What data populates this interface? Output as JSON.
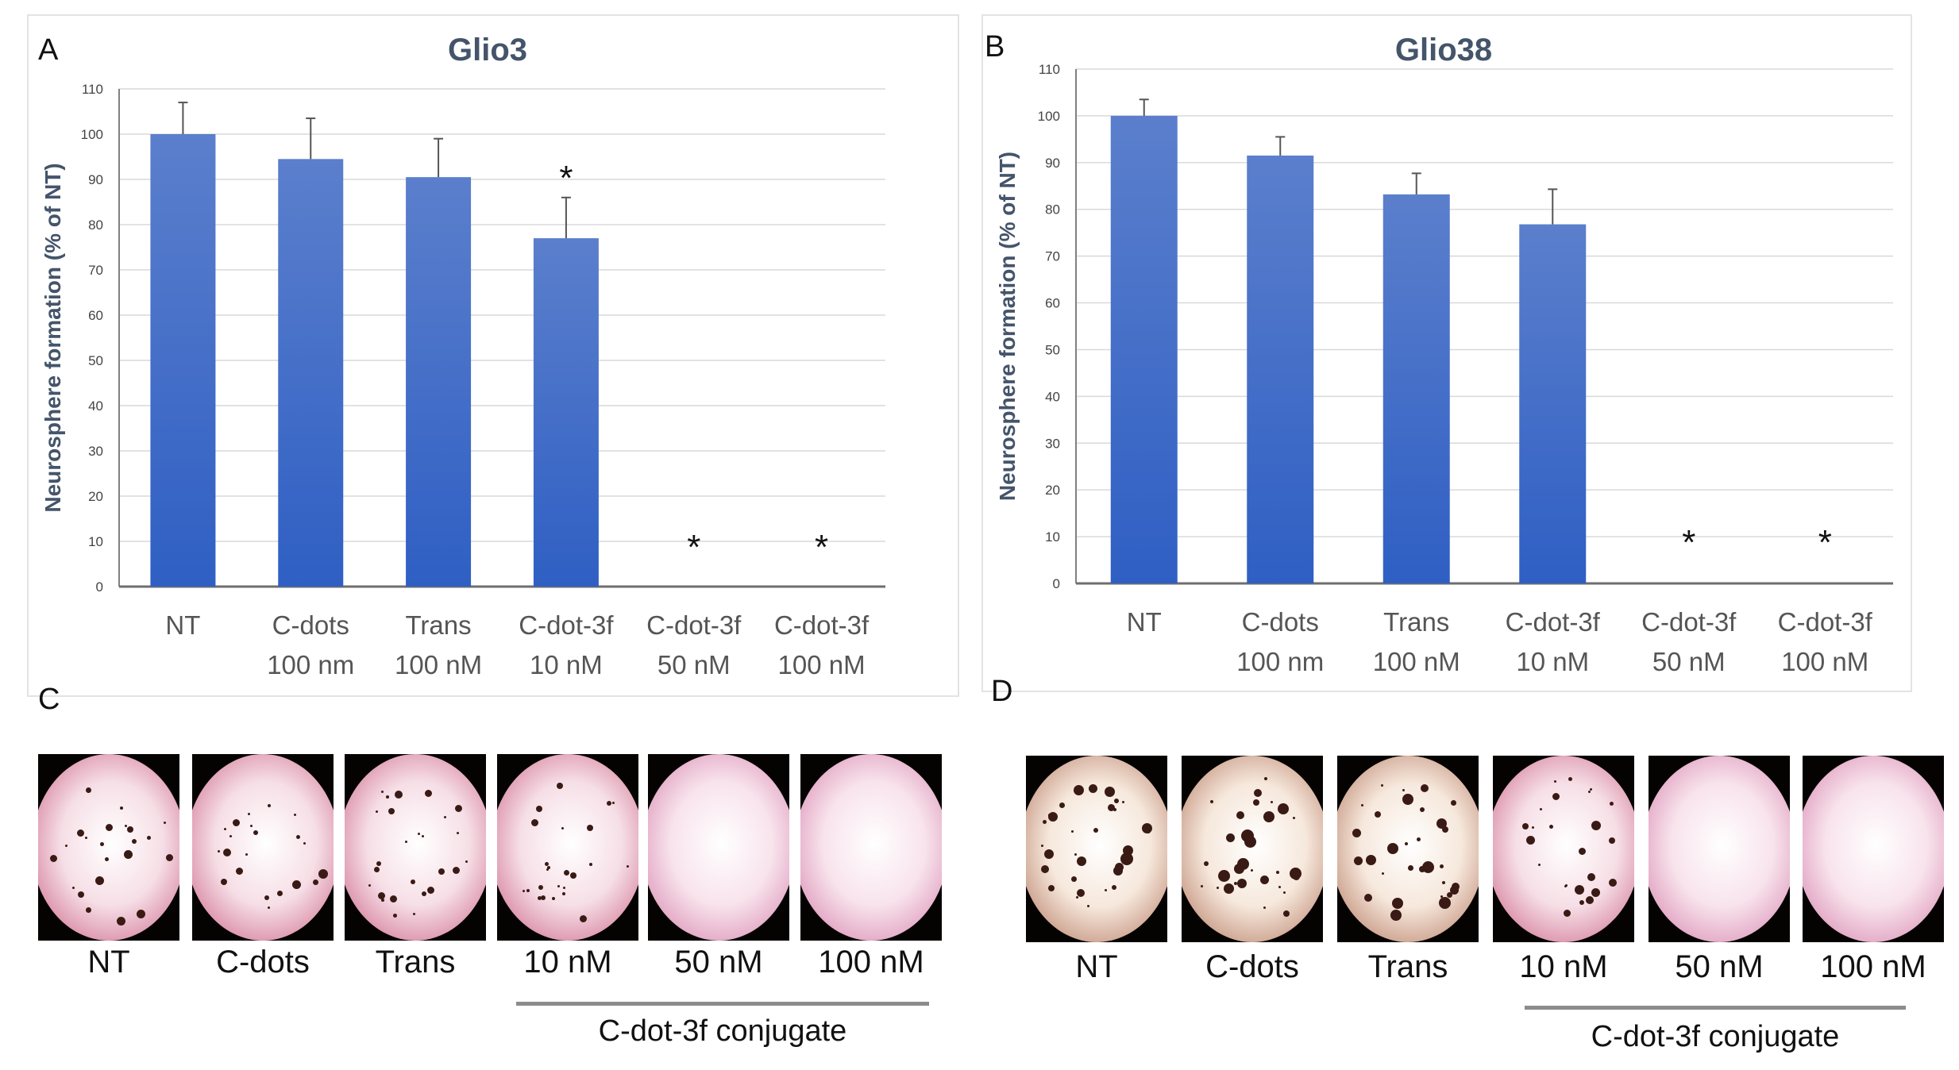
{
  "chart_data": [
    {
      "panel": "A",
      "type": "bar",
      "title": "Glio3",
      "ylabel": "Neurosphere formation (% of NT)",
      "xlabel": "",
      "ylim": [
        0,
        110
      ],
      "yticks": [
        "0",
        "10",
        "20",
        "30",
        "40",
        "50",
        "60",
        "70",
        "80",
        "90",
        "100",
        "110"
      ],
      "categories": [
        {
          "line1": "NT",
          "line2": ""
        },
        {
          "line1": "C-dots",
          "line2": "100 nm"
        },
        {
          "line1": "Trans",
          "line2": "100 nM"
        },
        {
          "line1": "C-dot-3f",
          "line2": "10 nM"
        },
        {
          "line1": "C-dot-3f",
          "line2": "50 nM"
        },
        {
          "line1": "C-dot-3f",
          "line2": "100 nM"
        }
      ],
      "values": [
        100,
        94.5,
        90.5,
        77,
        0,
        0
      ],
      "errors": [
        7,
        9,
        8.5,
        9,
        0,
        0
      ],
      "significance": [
        "",
        "",
        "",
        "*",
        "*",
        "*"
      ],
      "color": "#4472c4",
      "grid": true
    },
    {
      "panel": "B",
      "type": "bar",
      "title": "Glio38",
      "ylabel": "Neurosphere formation (% of NT)",
      "xlabel": "",
      "ylim": [
        0,
        110
      ],
      "yticks": [
        "0",
        "10",
        "20",
        "30",
        "40",
        "50",
        "60",
        "70",
        "80",
        "90",
        "100",
        "110"
      ],
      "categories": [
        {
          "line1": "NT",
          "line2": ""
        },
        {
          "line1": "C-dots",
          "line2": "100 nm"
        },
        {
          "line1": "Trans",
          "line2": "100 nM"
        },
        {
          "line1": "C-dot-3f",
          "line2": "10 nM"
        },
        {
          "line1": "C-dot-3f",
          "line2": "50 nM"
        },
        {
          "line1": "C-dot-3f",
          "line2": "100 nM"
        }
      ],
      "values": [
        100,
        91.5,
        83.2,
        76.8,
        0,
        0
      ],
      "errors": [
        3.5,
        4,
        4.5,
        7.5,
        0,
        0
      ],
      "significance": [
        "",
        "",
        "",
        "",
        "*",
        "*"
      ],
      "color": "#4472c4",
      "grid": true
    }
  ],
  "panel_labels": {
    "a": "A",
    "b": "B",
    "c": "C",
    "d": "D"
  },
  "images_c": {
    "labels": [
      "NT",
      "C-dots",
      "Trans",
      "10 nM",
      "50 nM",
      "100 nM"
    ],
    "group_label": "C-dot-3f conjugate"
  },
  "images_d": {
    "labels": [
      "NT",
      "C-dots",
      "Trans",
      "10 nM",
      "50 nM",
      "100 nM"
    ],
    "group_label": "C-dot-3f conjugate"
  }
}
